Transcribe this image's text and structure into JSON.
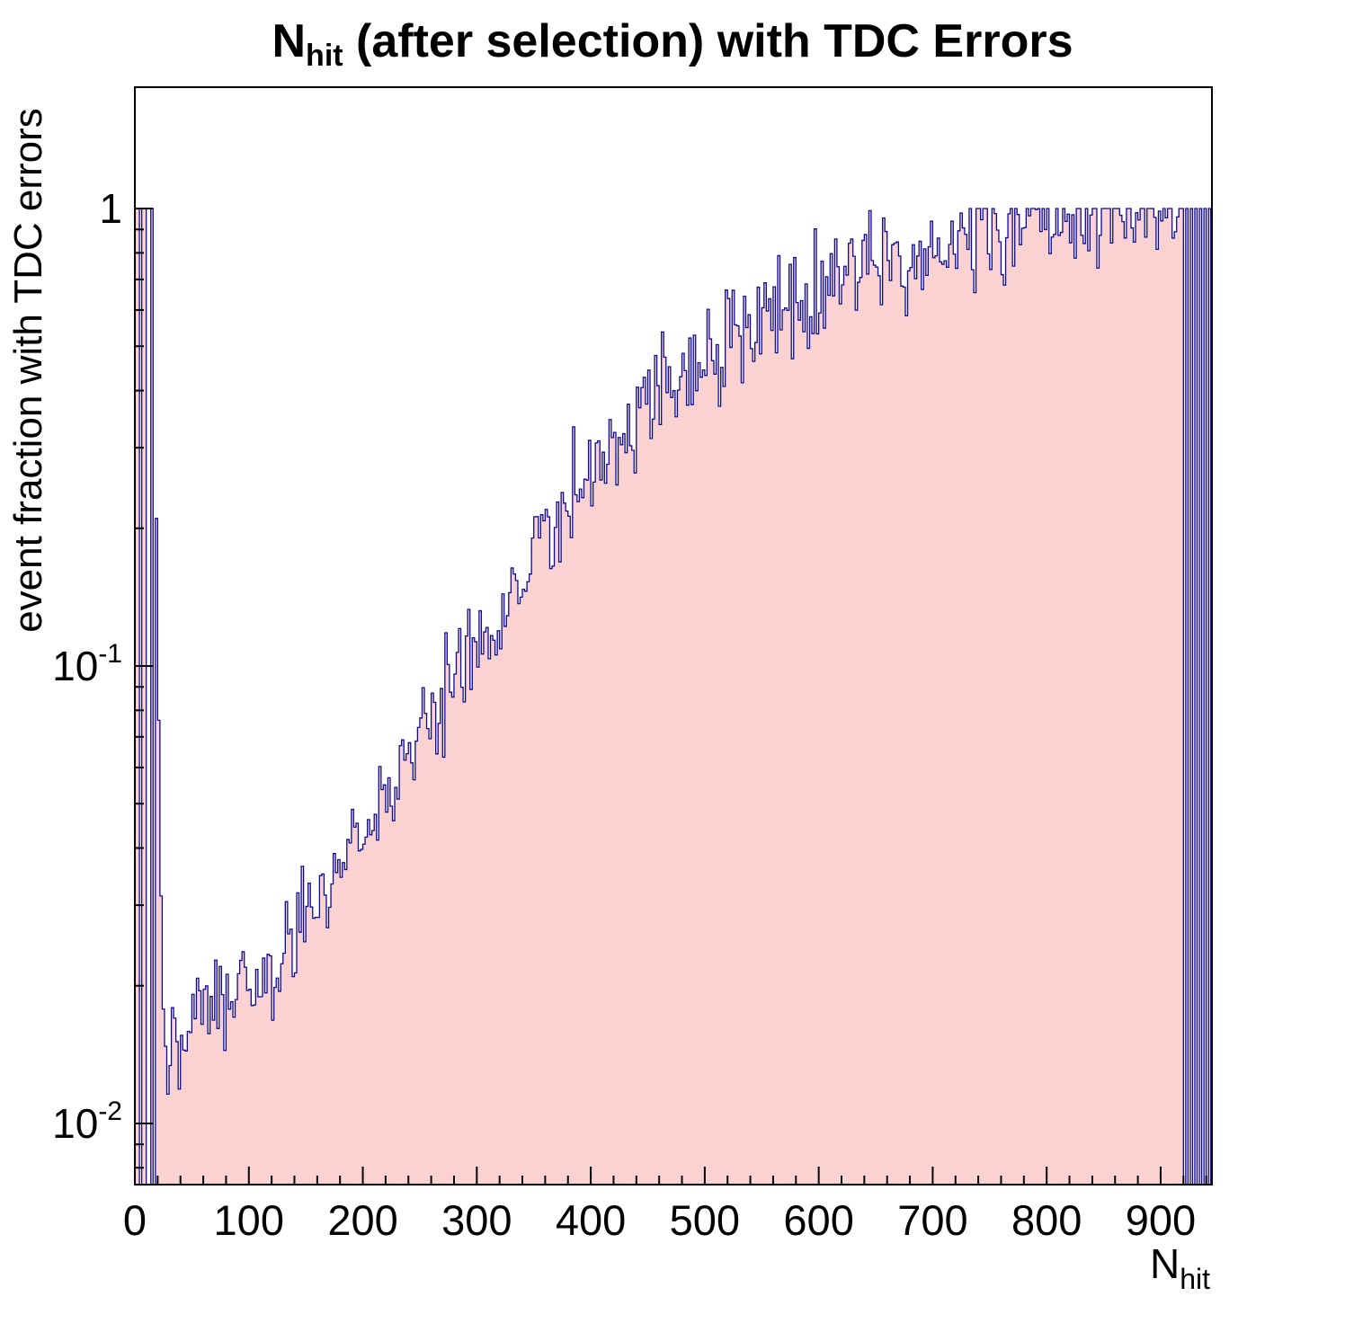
{
  "chart_data": {
    "type": "bar",
    "subtype": "histogram-step-filled",
    "title": {
      "prefix": "N",
      "subscript": "hit",
      "suffix": " (after selection) with TDC Errors"
    },
    "xlabel": {
      "main": "N",
      "subscript": "hit"
    },
    "ylabel": "event fraction with TDC errors",
    "x_range": [
      0,
      945
    ],
    "y_scale": "log",
    "y_range": [
      0.00735,
      1.842
    ],
    "x_major_ticks": [
      0,
      100,
      200,
      300,
      400,
      500,
      600,
      700,
      800,
      900
    ],
    "x_minor_step": 20,
    "y_major_ticks": [
      {
        "value": 1,
        "base": "1",
        "exp": ""
      },
      {
        "value": 0.1,
        "base": "10",
        "exp": "-1"
      },
      {
        "value": 0.01,
        "base": "10",
        "exp": "-2"
      }
    ],
    "bin_width": 2,
    "trend_points": [
      [
        18,
        0.45
      ],
      [
        20,
        0.12
      ],
      [
        24,
        0.022
      ],
      [
        28,
        0.0155
      ],
      [
        40,
        0.016
      ],
      [
        60,
        0.0175
      ],
      [
        80,
        0.017
      ],
      [
        100,
        0.0195
      ],
      [
        120,
        0.021
      ],
      [
        140,
        0.0265
      ],
      [
        160,
        0.03
      ],
      [
        180,
        0.037
      ],
      [
        200,
        0.043
      ],
      [
        220,
        0.051
      ],
      [
        240,
        0.063
      ],
      [
        260,
        0.075
      ],
      [
        280,
        0.092
      ],
      [
        300,
        0.115
      ],
      [
        320,
        0.135
      ],
      [
        340,
        0.16
      ],
      [
        360,
        0.19
      ],
      [
        380,
        0.23
      ],
      [
        400,
        0.27
      ],
      [
        420,
        0.3
      ],
      [
        440,
        0.35
      ],
      [
        460,
        0.4
      ],
      [
        480,
        0.44
      ],
      [
        500,
        0.47
      ],
      [
        520,
        0.52
      ],
      [
        540,
        0.56
      ],
      [
        560,
        0.6
      ],
      [
        580,
        0.62
      ],
      [
        600,
        0.66
      ],
      [
        620,
        0.7
      ],
      [
        640,
        0.73
      ],
      [
        660,
        0.76
      ],
      [
        680,
        0.79
      ],
      [
        700,
        0.82
      ],
      [
        720,
        0.85
      ],
      [
        740,
        0.88
      ],
      [
        760,
        0.91
      ],
      [
        780,
        0.93
      ],
      [
        800,
        0.94
      ],
      [
        820,
        0.95
      ],
      [
        840,
        0.96
      ],
      [
        860,
        0.96
      ],
      [
        880,
        0.95
      ],
      [
        900,
        0.96
      ],
      [
        918,
        0.97
      ]
    ],
    "left_region": {
      "end_x": 17,
      "full_bins_x": [
        0,
        3,
        6,
        9,
        15
      ],
      "full_value": 1.0
    },
    "right_region": {
      "start_x": 919,
      "empty_bins_x": [
        921,
        925,
        929,
        933,
        937,
        941,
        944
      ],
      "value": 1.0
    },
    "noise": {
      "seed": 123456,
      "log10_amplitude": 0.085
    },
    "colors": {
      "fill": "#fbd2d2",
      "line": "#0b0b96",
      "axis": "#000000",
      "text": "#000000",
      "background": "#ffffff"
    }
  }
}
